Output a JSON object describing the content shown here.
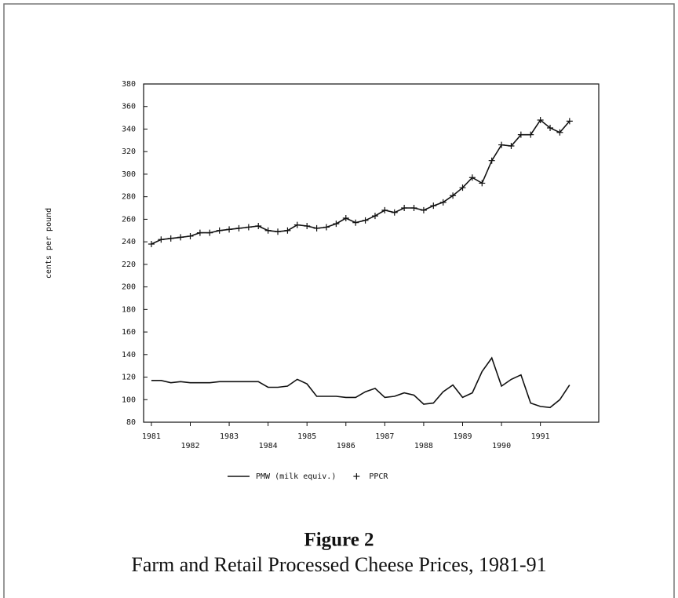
{
  "chart_data": {
    "type": "line",
    "title": "Figure 2",
    "subtitle": "Farm and Retail Processed Cheese Prices, 1981-91",
    "y_label": "cents per pound",
    "x": [
      1981,
      1981.25,
      1981.5,
      1981.75,
      1982,
      1982.25,
      1982.5,
      1982.75,
      1983,
      1983.25,
      1983.5,
      1983.75,
      1984,
      1984.25,
      1984.5,
      1984.75,
      1985,
      1985.25,
      1985.5,
      1985.75,
      1986,
      1986.25,
      1986.5,
      1986.75,
      1987,
      1987.25,
      1987.5,
      1987.75,
      1988,
      1988.25,
      1988.5,
      1988.75,
      1989,
      1989.25,
      1989.5,
      1989.75,
      1990,
      1990.25,
      1990.5,
      1990.75,
      1991,
      1991.25,
      1991.5,
      1991.75
    ],
    "series": [
      {
        "name": "PMW (milk equiv.)",
        "color": "#111111",
        "marker": "none",
        "values": [
          117,
          117,
          115,
          116,
          115,
          115,
          115,
          116,
          116,
          116,
          116,
          116,
          111,
          111,
          112,
          118,
          114,
          103,
          103,
          103,
          102,
          102,
          107,
          110,
          102,
          103,
          106,
          104,
          96,
          97,
          107,
          113,
          102,
          106,
          125,
          137,
          112,
          118,
          122,
          97,
          94,
          93,
          100,
          113
        ]
      },
      {
        "name": "PPCR",
        "color": "#111111",
        "marker": "plus",
        "values": [
          238,
          242,
          243,
          244,
          245,
          248,
          248,
          250,
          251,
          252,
          253,
          254,
          250,
          249,
          250,
          255,
          254,
          252,
          253,
          256,
          261,
          257,
          259,
          263,
          268,
          266,
          270,
          270,
          268,
          272,
          275,
          281,
          288,
          297,
          292,
          312,
          326,
          325,
          335,
          335,
          348,
          341,
          337,
          347
        ]
      }
    ],
    "xlim": [
      1980.8,
      1992.5
    ],
    "xticks": [
      1981,
      1982,
      1983,
      1984,
      1985,
      1986,
      1987,
      1988,
      1989,
      1990,
      1991
    ],
    "ylim": [
      80,
      380
    ],
    "yticks": [
      80,
      100,
      120,
      140,
      160,
      180,
      200,
      220,
      240,
      260,
      280,
      300,
      320,
      340,
      360,
      380
    ],
    "grid": false,
    "legend": "bottom"
  }
}
